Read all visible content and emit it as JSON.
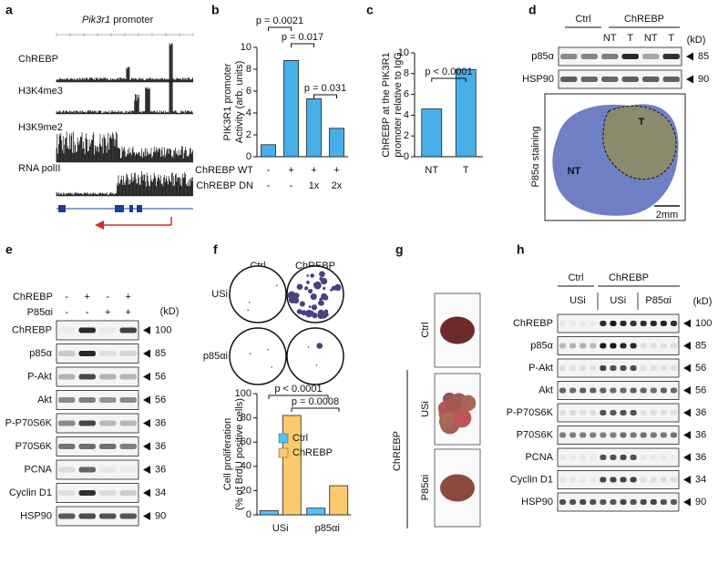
{
  "panels": {
    "letters": [
      "a",
      "b",
      "c",
      "d",
      "e",
      "f",
      "g",
      "h"
    ],
    "a": {
      "title_gene": "Pik3r1",
      "title_rest": " promoter",
      "tracks": [
        "ChREBP",
        "H3K4me3",
        "H3K9me2",
        "RNA polII"
      ]
    },
    "d": {
      "groups": [
        "Ctrl",
        "ChREBP"
      ],
      "lanes": [
        "NT",
        "T",
        "NT",
        "T"
      ],
      "unit": "(kD)",
      "rows": [
        {
          "label": "p85α",
          "kd": "85"
        },
        {
          "label": "HSP90",
          "kd": "90"
        }
      ],
      "staining": {
        "label": "P85α staining",
        "regions": [
          "NT",
          "T"
        ],
        "scale": "2mm"
      }
    },
    "e": {
      "conditions": [
        {
          "name": "ChREBP",
          "signs": [
            "-",
            "+",
            "-",
            "+"
          ]
        },
        {
          "name": "P85αi",
          "signs": [
            "-",
            "-",
            "+",
            "+"
          ]
        }
      ],
      "unit": "(kD)",
      "rows": [
        {
          "label": "ChREBP",
          "kd": "100"
        },
        {
          "label": "p85α",
          "kd": "85"
        },
        {
          "label": "P-Akt",
          "kd": "56"
        },
        {
          "label": "Akt",
          "kd": "56"
        },
        {
          "label": "P-P70S6K",
          "kd": "36"
        },
        {
          "label": "P70S6K",
          "kd": "36"
        },
        {
          "label": "PCNA",
          "kd": "36"
        },
        {
          "label": "Cyclin D1",
          "kd": "34"
        },
        {
          "label": "HSP90",
          "kd": "90"
        }
      ]
    },
    "f": {
      "columns": [
        "Ctrl",
        "ChREBP"
      ],
      "rows": [
        "USi",
        "p85αi"
      ]
    },
    "g": {
      "groups": [
        "Ctrl",
        "ChREBP"
      ],
      "rows": [
        "USi",
        "P85αi"
      ]
    },
    "h": {
      "groups": [
        "Ctrl",
        "ChREBP"
      ],
      "lanes": [
        "USi",
        "USi",
        "P85αi"
      ],
      "unit": "(kD)",
      "rows": [
        {
          "label": "ChREBP",
          "kd": "100"
        },
        {
          "label": "p85α",
          "kd": "85"
        },
        {
          "label": "P-Akt",
          "kd": "56"
        },
        {
          "label": "Akt",
          "kd": "56"
        },
        {
          "label": "P-P70S6K",
          "kd": "36"
        },
        {
          "label": "P70S6K",
          "kd": "36"
        },
        {
          "label": "PCNA",
          "kd": "36"
        },
        {
          "label": "Cyclin D1",
          "kd": "34"
        },
        {
          "label": "HSP90",
          "kd": "90"
        }
      ]
    }
  },
  "chart_data": [
    {
      "type": "bar",
      "color": "#48aee8",
      "y_label": [
        "PIK3R1 promoter",
        "Activity (arb. units)"
      ],
      "values": [
        1.1,
        8.8,
        5.3,
        2.6
      ],
      "condition_rows": [
        {
          "name": "ChREBP WT",
          "labels": [
            "-",
            "+",
            "+",
            "+"
          ]
        },
        {
          "name": "ChREBP DN",
          "labels": [
            "-",
            "-",
            "1x",
            "2x"
          ]
        }
      ],
      "ylim": [
        0,
        10
      ],
      "yticks": [
        0,
        2,
        4,
        6,
        8,
        10
      ],
      "annotations": [
        "p = 0.0021",
        "p = 0.017",
        "p = 0.031"
      ]
    },
    {
      "type": "bar",
      "color": "#48aee8",
      "y_label": [
        "ChREBP at  the PIK3R1",
        "promoter relative to IgG"
      ],
      "categories": [
        "NT",
        "T"
      ],
      "values": [
        4.6,
        8.4
      ],
      "ylim": [
        0,
        10
      ],
      "yticks": [
        0,
        2,
        4,
        6,
        8,
        10
      ],
      "annotations": [
        "p < 0.0001"
      ]
    },
    {
      "type": "bar",
      "y_label": [
        "Cell proliferation",
        "(% of BrdU positive cells)"
      ],
      "categories": [
        "USi",
        "p85αi"
      ],
      "series": [
        {
          "name": "Ctrl",
          "color": "#4fc3f7",
          "values": [
            3.5,
            5.5
          ]
        },
        {
          "name": "ChREBP",
          "color": "#fcc96d",
          "values": [
            82,
            24
          ]
        }
      ],
      "ylim": [
        0,
        100
      ],
      "yticks": [
        0,
        20,
        40,
        60,
        80,
        100
      ],
      "legend": "upper right",
      "annotations": [
        "p < 0.0001",
        "p = 0.0008"
      ]
    }
  ]
}
